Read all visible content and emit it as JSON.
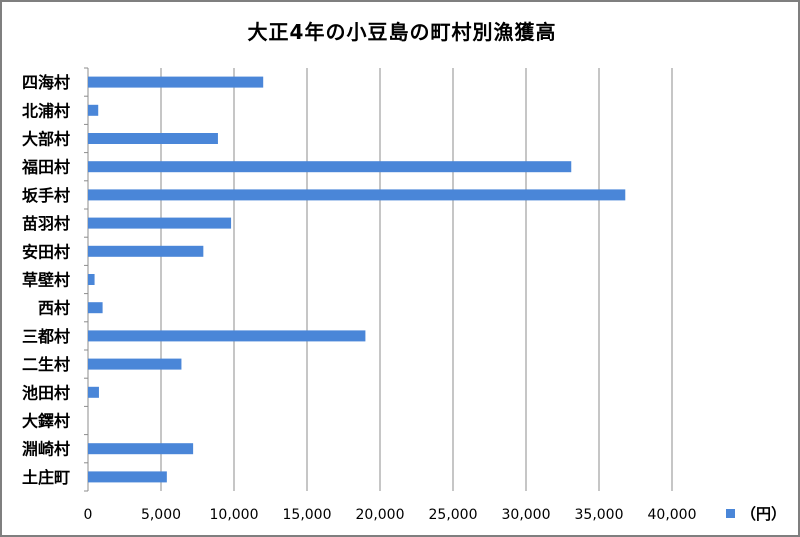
{
  "chart_data": {
    "type": "bar",
    "orientation": "horizontal",
    "title": "大正4年の小豆島の町村別漁獲高",
    "categories": [
      "四海村",
      "北浦村",
      "大部村",
      "福田村",
      "坂手村",
      "苗羽村",
      "安田村",
      "草壁村",
      "西村",
      "三都村",
      "二生村",
      "池田村",
      "大鐸村",
      "淵崎村",
      "土庄町"
    ],
    "series": [
      {
        "name": "（円）",
        "values": [
          12000,
          700,
          8900,
          33100,
          36800,
          9800,
          7900,
          450,
          1000,
          19000,
          6400,
          750,
          0,
          7200,
          5400
        ]
      }
    ],
    "xlim": [
      0,
      40000
    ],
    "xticks": [
      0,
      5000,
      10000,
      15000,
      20000,
      25000,
      30000,
      35000,
      40000
    ],
    "xtick_labels": [
      "0",
      "5,000",
      "10,000",
      "15,000",
      "20,000",
      "25,000",
      "30,000",
      "35,000",
      "40,000"
    ],
    "grid": "vertical",
    "legend_position": "bottom-right",
    "bar_color": "#4a86d8",
    "grid_color": "#8c8c8c"
  }
}
